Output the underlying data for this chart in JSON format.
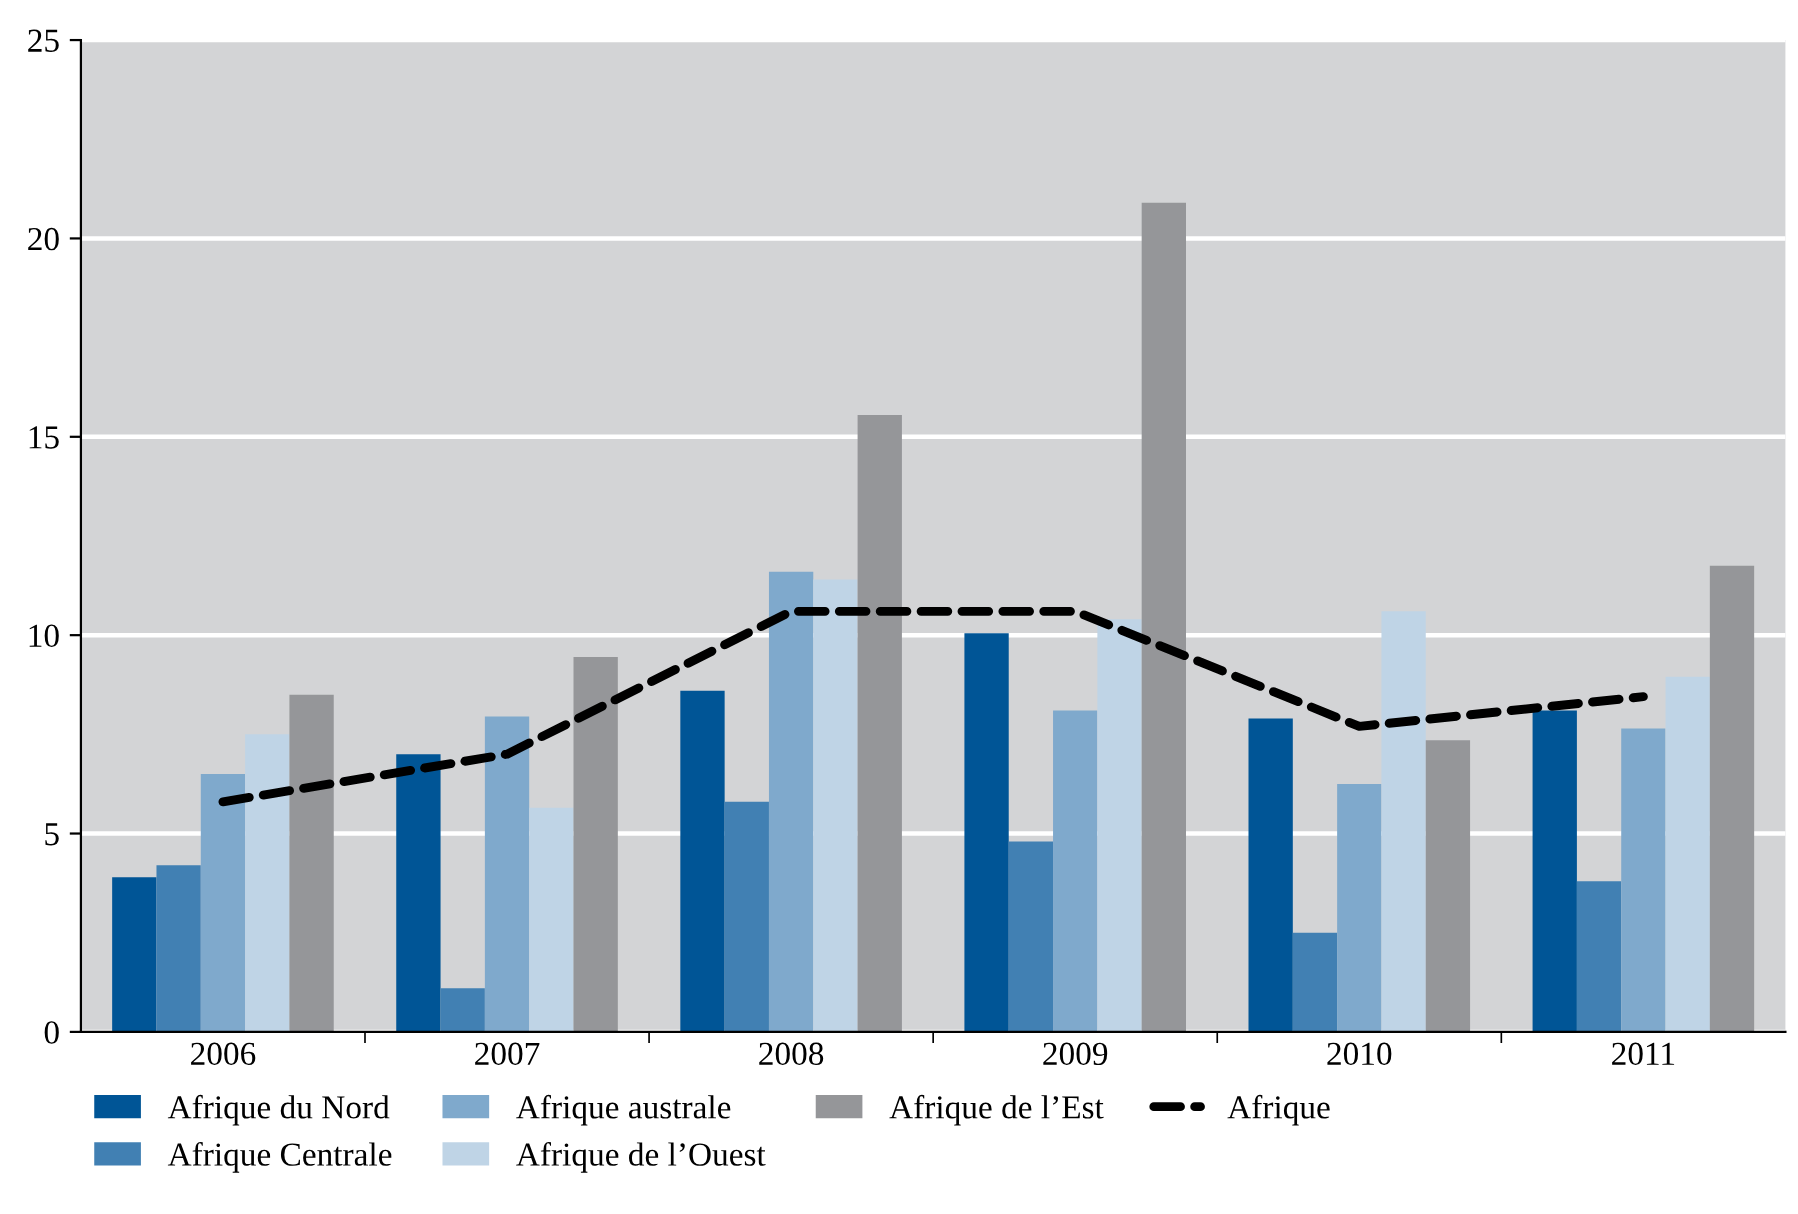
{
  "chart_data": {
    "type": "bar",
    "categories": [
      "2006",
      "2007",
      "2008",
      "2009",
      "2010",
      "2011"
    ],
    "series": [
      {
        "name": "Afrique du Nord",
        "color": "#005596",
        "values": [
          3.9,
          7.0,
          8.6,
          10.05,
          7.9,
          8.1
        ]
      },
      {
        "name": "Afrique Centrale",
        "color": "#4180b3",
        "values": [
          4.2,
          1.1,
          5.8,
          4.8,
          2.5,
          3.8
        ]
      },
      {
        "name": "Afrique australe",
        "color": "#7fa9cc",
        "values": [
          6.5,
          7.95,
          11.6,
          8.1,
          6.25,
          7.65
        ]
      },
      {
        "name": "Afrique de l’Ouest",
        "color": "#bfd4e6",
        "values": [
          7.5,
          5.65,
          11.4,
          10.4,
          10.6,
          8.95
        ]
      },
      {
        "name": "Afrique de l’Est",
        "color": "#959699",
        "values": [
          8.5,
          9.45,
          15.55,
          20.9,
          7.35,
          11.75
        ]
      },
      {
        "name": "Afrique",
        "type": "line",
        "color": "#000000",
        "line_style": "dashed",
        "values": [
          5.8,
          7.0,
          10.6,
          10.6,
          7.7,
          8.45
        ]
      }
    ],
    "ylim": [
      0,
      25
    ],
    "yticks": [
      0,
      5,
      10,
      15,
      20,
      25
    ],
    "grid": "y",
    "legend": "bottom"
  }
}
